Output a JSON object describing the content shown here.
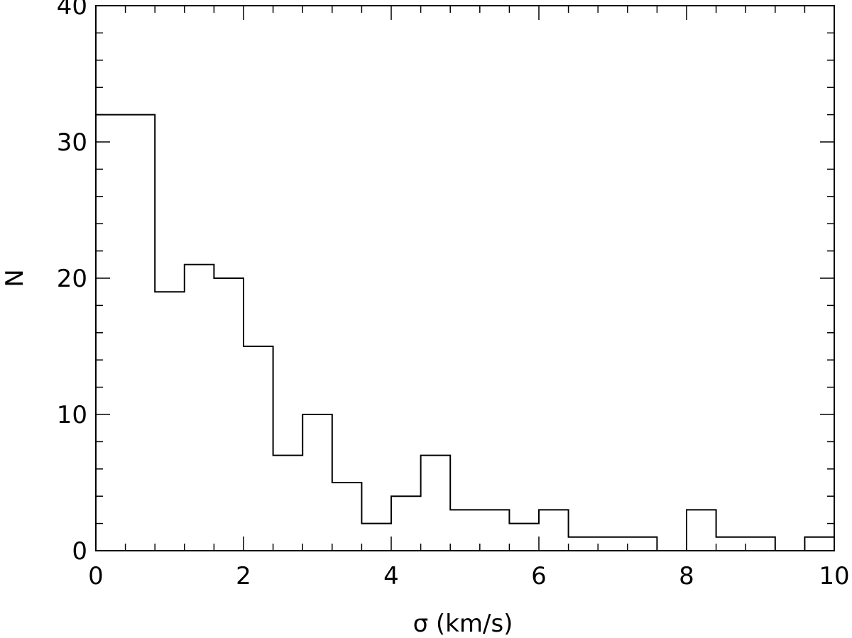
{
  "chart_data": {
    "type": "bar",
    "bin_edges": [
      0.0,
      0.8,
      1.2,
      1.6,
      2.0,
      2.4,
      2.8,
      3.2,
      3.6,
      4.0,
      4.4,
      4.8,
      5.6,
      6.0,
      6.4,
      7.6,
      8.0,
      8.4,
      9.2,
      9.6,
      10.0
    ],
    "values": [
      32,
      19,
      21,
      20,
      15,
      7,
      10,
      5,
      2,
      4,
      7,
      3,
      2,
      3,
      1,
      0,
      3,
      1,
      0,
      1
    ],
    "xlabel": "σ  (km/s)",
    "ylabel": "N",
    "xlim": [
      0,
      10
    ],
    "ylim": [
      0,
      40
    ],
    "xticks": [
      "0",
      "2",
      "4",
      "6",
      "8",
      "10"
    ],
    "yticks": [
      "0",
      "10",
      "20",
      "30",
      "40"
    ],
    "grid": false
  }
}
